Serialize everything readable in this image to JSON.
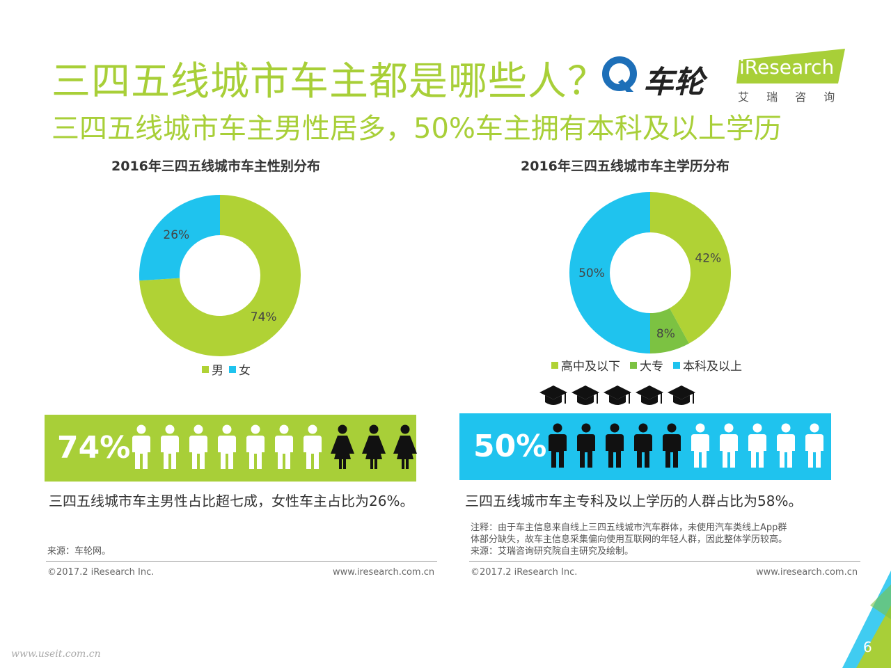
{
  "header": {
    "title": "三四五线城市车主都是哪些人？",
    "subtitle": "三四五线城市车主男性居多，50%车主拥有本科及以上学历",
    "partner_logo_text": "车轮",
    "brand_logo_text": "iResearch",
    "brand_logo_cn": "艾 瑞 咨 询"
  },
  "chart_data": [
    {
      "type": "pie",
      "title": "2016年三四五线城市车主性别分布",
      "labels": [
        "男",
        "女"
      ],
      "values": [
        74,
        26
      ],
      "value_labels": [
        "74%",
        "26%"
      ],
      "colors": [
        "#b0d235",
        "#1fc3ee"
      ],
      "legend": "bottom"
    },
    {
      "type": "pie",
      "title": "2016年三四五线城市车主学历分布",
      "labels": [
        "高中及以下",
        "大专",
        "本科及以上"
      ],
      "values": [
        42,
        8,
        50
      ],
      "value_labels": [
        "42%",
        "8%",
        "50%"
      ],
      "colors": [
        "#b0d235",
        "#7cc242",
        "#1fc3ee"
      ],
      "legend": "bottom"
    }
  ],
  "left_panel": {
    "banner_value": "74%",
    "banner_color": "#a8cf38",
    "male_icons": 7,
    "female_icons": 3,
    "caption": "三四五线城市车主男性占比超七成，女性车主占比为26%。",
    "source": "来源：车轮网。",
    "copyright": "©2017.2 iResearch Inc.",
    "website": "www.iresearch.com.cn"
  },
  "right_panel": {
    "banner_value": "50%",
    "banner_color": "#1fc3ee",
    "dark_icons": 5,
    "light_icons": 5,
    "cap_icons": 5,
    "caption": "三四五线城市车主专科及以上学历的人群占比为58%。",
    "note_line1": "注释：由于车主信息来自线上三四五线城市汽车群体，未使用汽车类线上App群",
    "note_line2": "体部分缺失，故车主信息采集偏向使用互联网的年轻人群，因此整体学历较高。",
    "source": "来源：艾瑞咨询研究院自主研究及绘制。",
    "copyright": "©2017.2 iResearch Inc.",
    "website": "www.iresearch.com.cn"
  },
  "page_number": "6",
  "watermark": "www.useit.com.cn"
}
